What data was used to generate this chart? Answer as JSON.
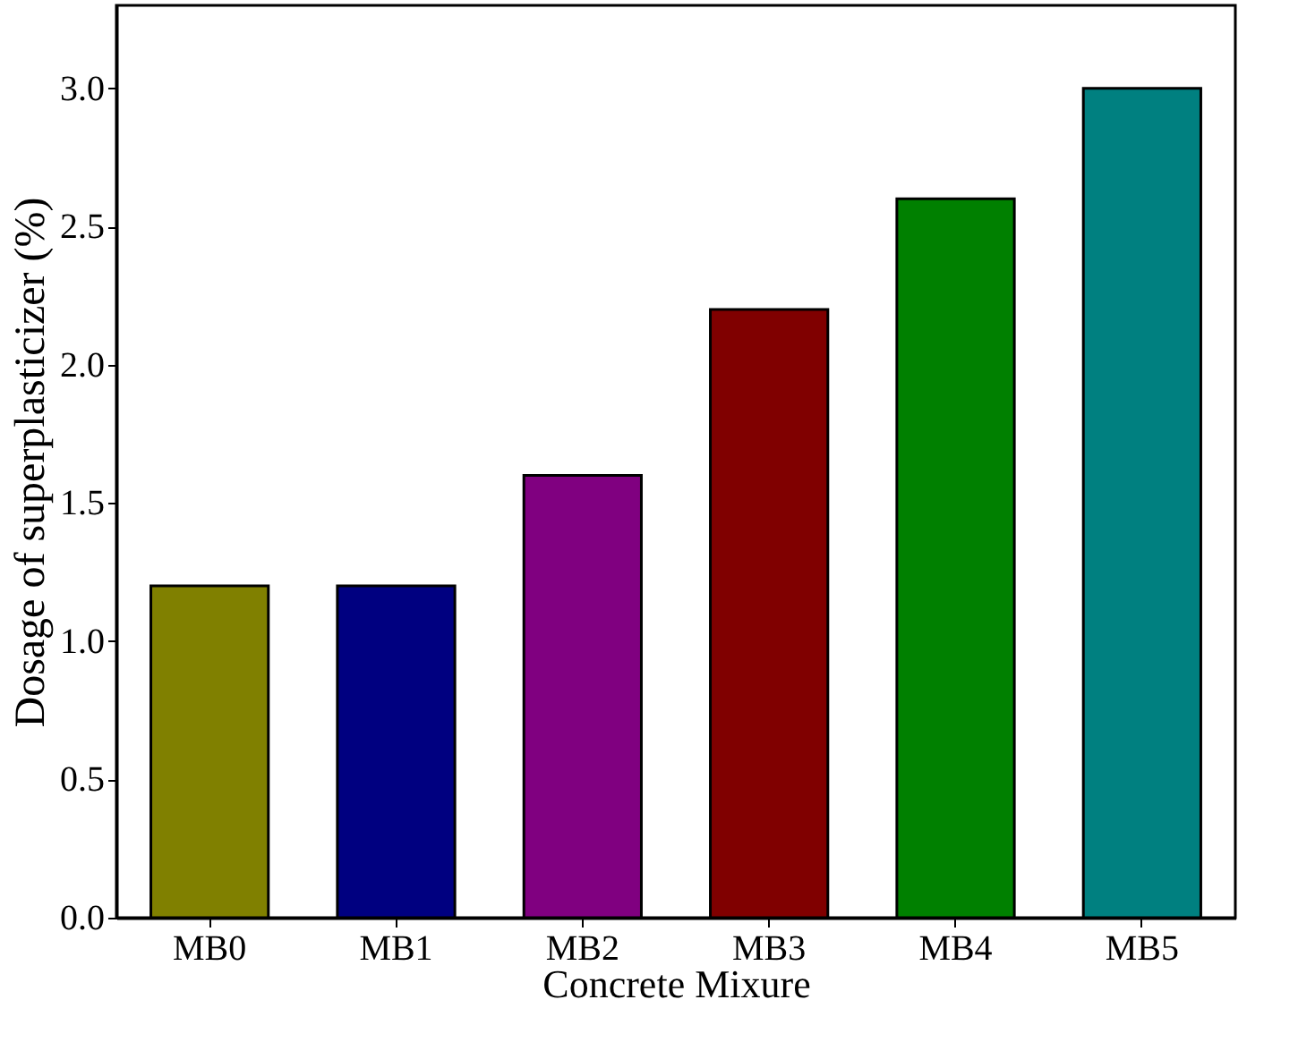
{
  "chart_data": {
    "type": "bar",
    "xlabel": "Concrete Mixure",
    "ylabel": "Dosage of superplasticizer (%)",
    "categories": [
      "MB0",
      "MB1",
      "MB2",
      "MB3",
      "MB4",
      "MB5"
    ],
    "values": [
      1.2,
      1.2,
      1.6,
      2.2,
      2.6,
      3.0
    ],
    "colors": [
      "#808000",
      "#000080",
      "#800080",
      "#800000",
      "#008000",
      "#008080"
    ],
    "ylim": [
      0,
      3.3
    ],
    "yticks": [
      {
        "value": 0,
        "label": "0.0"
      },
      {
        "value": 0.5,
        "label": "0.5"
      },
      {
        "value": 1,
        "label": "1.0"
      },
      {
        "value": 1.5,
        "label": "1.5"
      },
      {
        "value": 2,
        "label": "2.0"
      },
      {
        "value": 2.5,
        "label": "2.5"
      },
      {
        "value": 3,
        "label": "3.0"
      }
    ],
    "grid": false
  }
}
